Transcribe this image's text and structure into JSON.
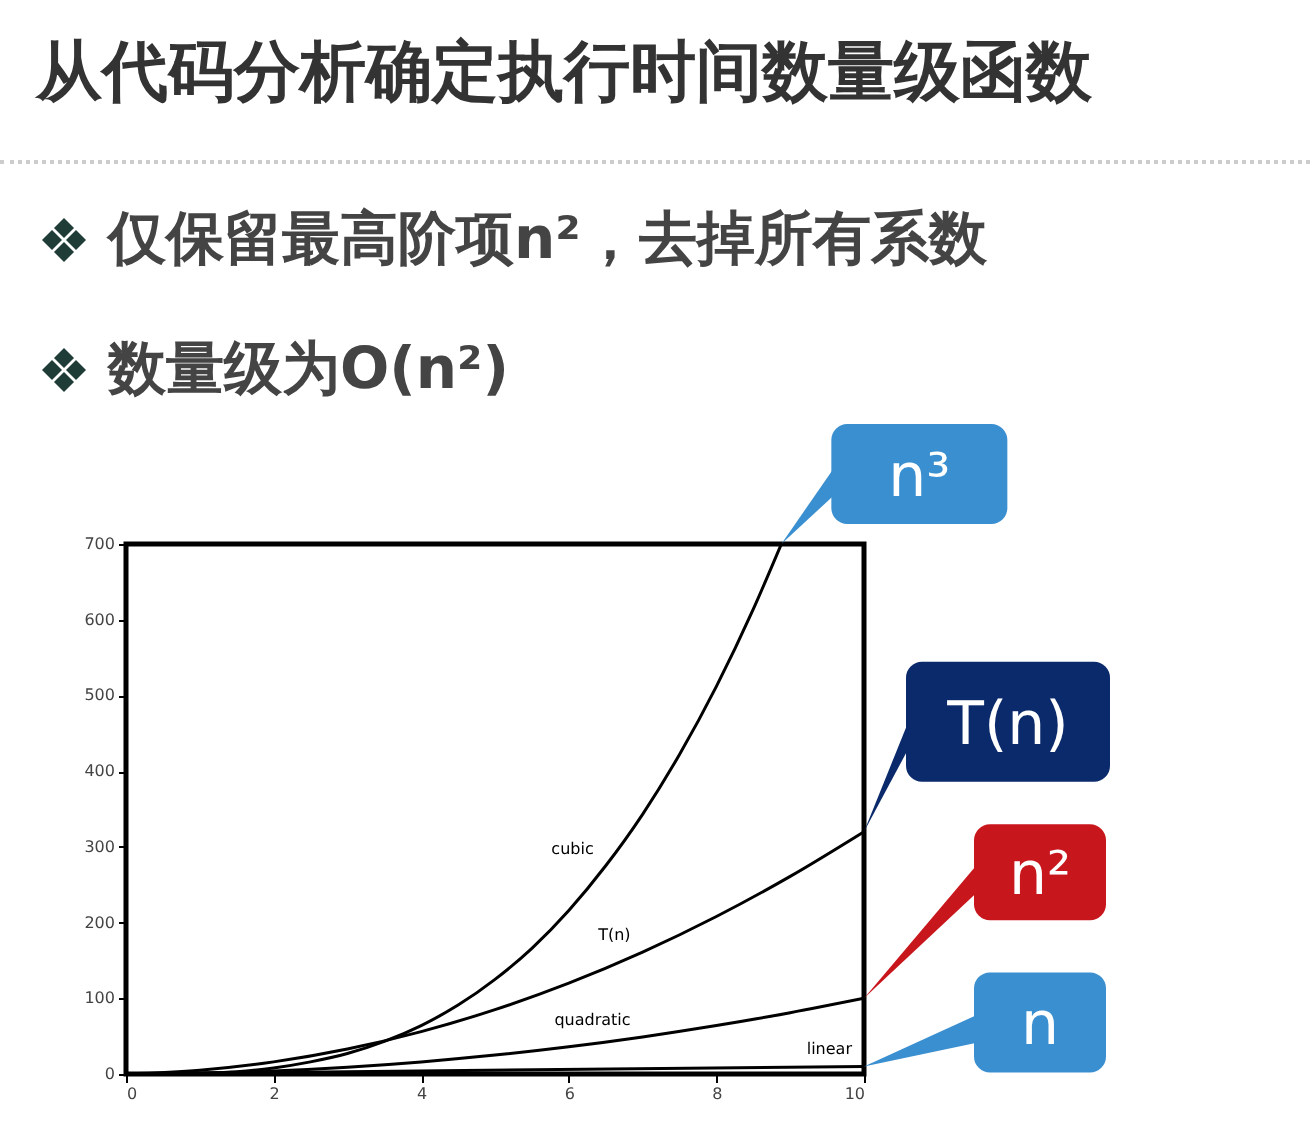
{
  "chart_data": {
    "type": "line",
    "title": "从代码分析确定执行时间数量级函数",
    "annotations": [
      "仅保留最高阶项n²，去掉所有系数",
      "数量级为O(n²)",
      {
        "text": "n³"
      },
      {
        "text": "T(n)"
      },
      {
        "text": "n²"
      },
      {
        "text": "n"
      }
    ],
    "series": [
      {
        "name": "cubic",
        "color": "#000000",
        "x": [
          0,
          0.5,
          1,
          1.5,
          2,
          2.5,
          3,
          3.5,
          4,
          4.5,
          5,
          5.5,
          6,
          6.5,
          7,
          7.5,
          8,
          8.5,
          8.88
        ],
        "values": [
          0,
          0,
          1,
          3,
          8,
          16,
          27,
          43,
          64,
          91,
          125,
          166,
          216,
          275,
          343,
          422,
          512,
          614,
          700
        ]
      },
      {
        "name": "T(n)",
        "color": "#000000",
        "x": [
          0,
          1,
          2,
          3,
          4,
          5,
          6,
          7,
          8,
          9,
          10
        ],
        "values": [
          0,
          5,
          16,
          33,
          56,
          85,
          120,
          161,
          208,
          261,
          320
        ]
      },
      {
        "name": "quadratic",
        "color": "#000000",
        "x": [
          0,
          1,
          2,
          3,
          4,
          5,
          6,
          7,
          8,
          9,
          10
        ],
        "values": [
          0,
          1,
          4,
          9,
          16,
          25,
          36,
          49,
          64,
          81,
          100
        ]
      },
      {
        "name": "linear",
        "color": "#000000",
        "x": [
          0,
          10
        ],
        "values": [
          0,
          10
        ]
      }
    ],
    "xlim": [
      0,
      10
    ],
    "xticks": [
      0,
      2,
      4,
      6,
      8,
      10
    ],
    "ylim": [
      0,
      700
    ],
    "yticks": [
      0,
      100,
      200,
      300,
      400,
      500,
      600,
      700
    ],
    "grid": false,
    "legend": false
  }
}
